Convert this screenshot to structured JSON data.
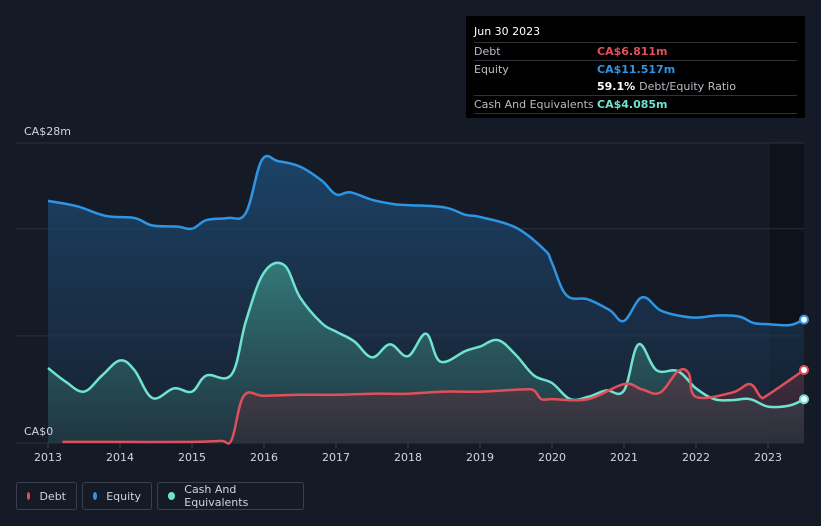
{
  "chart_data": {
    "type": "area",
    "y_top_label": "CA$28m",
    "y_bottom_label": "CA$0",
    "ylim": [
      0,
      28
    ],
    "xlim": [
      2013,
      2023.5
    ],
    "x_ticks": [
      "2013",
      "2014",
      "2015",
      "2016",
      "2017",
      "2018",
      "2019",
      "2020",
      "2021",
      "2022",
      "2023"
    ],
    "grid": true,
    "series": [
      {
        "name": "Debt",
        "color": "#e0505a",
        "points": [
          [
            2013.2,
            0.1
          ],
          [
            2014,
            0.1
          ],
          [
            2015,
            0.1
          ],
          [
            2015.4,
            0.2
          ],
          [
            2015.55,
            0.3
          ],
          [
            2015.72,
            4.4
          ],
          [
            2016,
            4.4
          ],
          [
            2016.5,
            4.5
          ],
          [
            2017,
            4.5
          ],
          [
            2017.5,
            4.6
          ],
          [
            2018,
            4.6
          ],
          [
            2018.5,
            4.8
          ],
          [
            2019,
            4.8
          ],
          [
            2019.6,
            5.0
          ],
          [
            2019.75,
            4.9
          ],
          [
            2019.85,
            4.1
          ],
          [
            2020,
            4.1
          ],
          [
            2020.5,
            4.1
          ],
          [
            2021,
            5.5
          ],
          [
            2021.25,
            5.0
          ],
          [
            2021.5,
            4.7
          ],
          [
            2021.75,
            6.7
          ],
          [
            2021.9,
            6.5
          ],
          [
            2022,
            4.3
          ],
          [
            2022.5,
            4.7
          ],
          [
            2022.75,
            5.5
          ],
          [
            2022.9,
            4.3
          ],
          [
            2023,
            4.5
          ],
          [
            2023.5,
            6.811
          ]
        ]
      },
      {
        "name": "Equity",
        "color": "#2d95e3",
        "points": [
          [
            2013,
            22.6
          ],
          [
            2013.4,
            22.1
          ],
          [
            2013.8,
            21.2
          ],
          [
            2014.2,
            21.0
          ],
          [
            2014.45,
            20.3
          ],
          [
            2014.8,
            20.2
          ],
          [
            2015,
            20.0
          ],
          [
            2015.2,
            20.8
          ],
          [
            2015.5,
            21.0
          ],
          [
            2015.75,
            21.5
          ],
          [
            2015.97,
            26.4
          ],
          [
            2016.2,
            26.3
          ],
          [
            2016.5,
            25.8
          ],
          [
            2016.8,
            24.5
          ],
          [
            2017,
            23.2
          ],
          [
            2017.2,
            23.4
          ],
          [
            2017.5,
            22.7
          ],
          [
            2017.8,
            22.3
          ],
          [
            2018,
            22.2
          ],
          [
            2018.5,
            22.0
          ],
          [
            2018.8,
            21.3
          ],
          [
            2019,
            21.1
          ],
          [
            2019.5,
            20.1
          ],
          [
            2019.9,
            18.0
          ],
          [
            2020,
            16.8
          ],
          [
            2020.2,
            13.8
          ],
          [
            2020.5,
            13.4
          ],
          [
            2020.8,
            12.4
          ],
          [
            2021,
            11.4
          ],
          [
            2021.25,
            13.6
          ],
          [
            2021.5,
            12.4
          ],
          [
            2021.75,
            11.9
          ],
          [
            2022,
            11.7
          ],
          [
            2022.3,
            11.9
          ],
          [
            2022.6,
            11.8
          ],
          [
            2022.8,
            11.2
          ],
          [
            2023,
            11.1
          ],
          [
            2023.3,
            11.0
          ],
          [
            2023.5,
            11.517
          ]
        ]
      },
      {
        "name": "Cash And Equivalents",
        "color": "#6fe3cf",
        "points": [
          [
            2013,
            7.0
          ],
          [
            2013.25,
            5.7
          ],
          [
            2013.5,
            4.8
          ],
          [
            2013.75,
            6.3
          ],
          [
            2014,
            7.7
          ],
          [
            2014.2,
            6.8
          ],
          [
            2014.45,
            4.2
          ],
          [
            2014.75,
            5.1
          ],
          [
            2015,
            4.8
          ],
          [
            2015.2,
            6.3
          ],
          [
            2015.55,
            6.4
          ],
          [
            2015.75,
            11.4
          ],
          [
            2016,
            15.9
          ],
          [
            2016.28,
            16.6
          ],
          [
            2016.5,
            13.6
          ],
          [
            2016.8,
            11.2
          ],
          [
            2017,
            10.4
          ],
          [
            2017.25,
            9.5
          ],
          [
            2017.5,
            8.0
          ],
          [
            2017.75,
            9.2
          ],
          [
            2018,
            8.1
          ],
          [
            2018.25,
            10.2
          ],
          [
            2018.45,
            7.6
          ],
          [
            2018.8,
            8.6
          ],
          [
            2019,
            9.0
          ],
          [
            2019.25,
            9.6
          ],
          [
            2019.5,
            8.2
          ],
          [
            2019.75,
            6.3
          ],
          [
            2020,
            5.6
          ],
          [
            2020.25,
            4.1
          ],
          [
            2020.5,
            4.3
          ],
          [
            2020.75,
            4.9
          ],
          [
            2021,
            4.9
          ],
          [
            2021.2,
            9.2
          ],
          [
            2021.45,
            6.8
          ],
          [
            2021.75,
            6.7
          ],
          [
            2022,
            5.1
          ],
          [
            2022.25,
            4.1
          ],
          [
            2022.5,
            4.0
          ],
          [
            2022.75,
            4.1
          ],
          [
            2023,
            3.4
          ],
          [
            2023.3,
            3.5
          ],
          [
            2023.5,
            4.085
          ]
        ]
      }
    ]
  },
  "tooltip": {
    "date": "Jun 30 2023",
    "debt_label": "Debt",
    "debt_value": "CA$6.811m",
    "equity_label": "Equity",
    "equity_value": "CA$11.517m",
    "ratio_value": "59.1%",
    "ratio_label": "Debt/Equity Ratio",
    "cash_label": "Cash And Equivalents",
    "cash_value": "CA$4.085m"
  },
  "legend": [
    {
      "label": "Debt",
      "color": "#e0505a"
    },
    {
      "label": "Equity",
      "color": "#2d95e3"
    },
    {
      "label": "Cash And Equivalents",
      "color": "#6fe3cf"
    }
  ]
}
